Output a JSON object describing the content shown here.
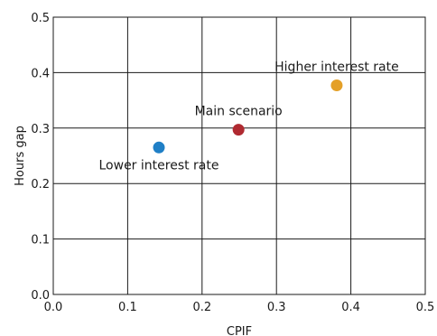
{
  "chart_data": {
    "type": "scatter",
    "title": "",
    "xlabel": "CPIF",
    "ylabel": "Hours gap",
    "xlim": [
      0.0,
      0.5
    ],
    "ylim": [
      0.0,
      0.5
    ],
    "x_ticks": [
      "0.0",
      "0.1",
      "0.2",
      "0.3",
      "0.4",
      "0.5"
    ],
    "y_ticks": [
      "0.0",
      "0.1",
      "0.2",
      "0.3",
      "0.4",
      "0.5"
    ],
    "grid": true,
    "legend": "none",
    "points": [
      {
        "label": "Lower interest rate",
        "x": 0.142,
        "y": 0.265,
        "color": "#1f7fc6",
        "label_position": "below"
      },
      {
        "label": "Main scenario",
        "x": 0.249,
        "y": 0.297,
        "color": "#b02a31",
        "label_position": "above"
      },
      {
        "label": "Higher interest rate",
        "x": 0.381,
        "y": 0.377,
        "color": "#e4a028",
        "label_position": "above"
      }
    ]
  }
}
